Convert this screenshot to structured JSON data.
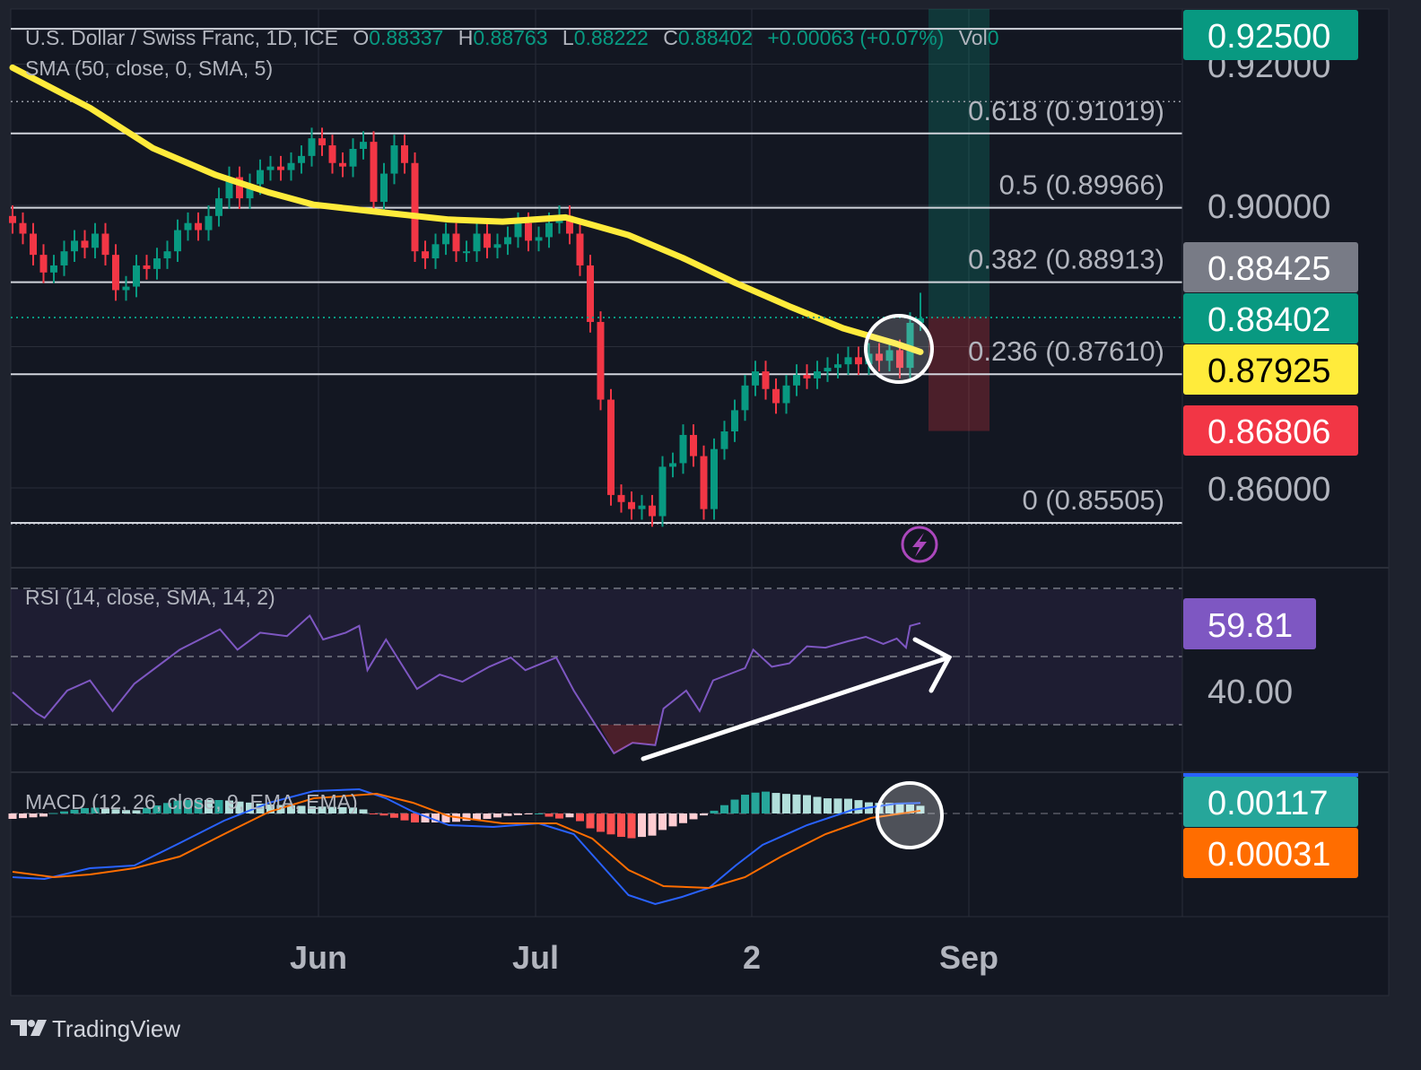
{
  "header": {
    "symbol": "U.S. Dollar / Swiss Franc, 1D, ICE",
    "o_label": "O",
    "o": "0.88337",
    "h_label": "H",
    "h": "0.88763",
    "l_label": "L",
    "l": "0.88222",
    "c_label": "C",
    "c": "0.88402",
    "change": "+0.00063 (+0.07%)",
    "vol_label": "Vol",
    "vol": "0",
    "sma_legend": "SMA (50, close, 0, SMA, 5)"
  },
  "colors": {
    "up": "#089981",
    "down": "#f23645",
    "sma": "#ffeb3b",
    "rsi": "#7e57c2",
    "macd": "#2962ff",
    "signal": "#ff6d00",
    "background": "#131722"
  },
  "fib_levels": [
    {
      "label": "0.618 (0.91019)",
      "price": 0.91019
    },
    {
      "label": "0.5 (0.89966)",
      "price": 0.89966
    },
    {
      "label": "0.382 (0.88913)",
      "price": 0.88913
    },
    {
      "label": "0.236 (0.87610)",
      "price": 0.8761
    },
    {
      "label": "0 (0.85505)",
      "price": 0.85505
    }
  ],
  "price_axis": {
    "ticks": [
      "0.92000",
      "0.90000",
      "0.86000"
    ],
    "tick_values": [
      0.92,
      0.9,
      0.86
    ],
    "badges": [
      {
        "label": "0.92500",
        "color": "#089981",
        "text_color": "#ffffff",
        "meaning": "target"
      },
      {
        "label": "0.88425",
        "color": "#787b86",
        "text_color": "#ffffff",
        "meaning": "entry"
      },
      {
        "label": "0.88402",
        "color": "#089981",
        "text_color": "#ffffff",
        "meaning": "last price"
      },
      {
        "label": "0.87925",
        "color": "#ffeb3b",
        "text_color": "#000000",
        "meaning": "SMA"
      },
      {
        "label": "0.86806",
        "color": "#f23645",
        "text_color": "#ffffff",
        "meaning": "stop"
      }
    ]
  },
  "time_axis": {
    "labels": [
      "Jun",
      "Jul",
      "2",
      "Sep"
    ]
  },
  "rsi": {
    "legend": "RSI (14, close, SMA, 14, 2)",
    "value_badge": "59.81",
    "axis_tick": "40.00",
    "bands": [
      30,
      50,
      70
    ]
  },
  "macd": {
    "legend": "MACD (12, 26, close, 9, EMA, EMA)",
    "macd_badge": "0.00117",
    "signal_badge": "0.00031"
  },
  "branding": {
    "name": "TradingView"
  },
  "chart_data": {
    "type": "candlestick",
    "closes": [
      0.8975,
      0.896,
      0.893,
      0.8905,
      0.8915,
      0.8935,
      0.895,
      0.894,
      0.896,
      0.893,
      0.888,
      0.8885,
      0.8915,
      0.891,
      0.8925,
      0.8935,
      0.8965,
      0.8975,
      0.8965,
      0.8985,
      0.901,
      0.904,
      0.901,
      0.903,
      0.905,
      0.9055,
      0.905,
      0.906,
      0.907,
      0.9095,
      0.9085,
      0.906,
      0.9055,
      0.908,
      0.909,
      0.9005,
      0.9045,
      0.9085,
      0.906,
      0.8935,
      0.8925,
      0.8945,
      0.896,
      0.8935,
      0.8935,
      0.896,
      0.894,
      0.8945,
      0.8955,
      0.8975,
      0.895,
      0.8955,
      0.8975,
      0.8985,
      0.896,
      0.8915,
      0.8835,
      0.8725,
      0.859,
      0.858,
      0.857,
      0.8575,
      0.856,
      0.863,
      0.8635,
      0.8675,
      0.8645,
      0.857,
      0.8655,
      0.868,
      0.871,
      0.8745,
      0.8765,
      0.874,
      0.872,
      0.8745,
      0.876,
      0.8755,
      0.8765,
      0.877,
      0.8775,
      0.8785,
      0.8775,
      0.879,
      0.878,
      0.8795,
      0.877,
      0.88337
    ],
    "last_candle": {
      "open": 0.88337,
      "high": 0.88763,
      "low": 0.88222,
      "close": 0.88402
    },
    "period_high": 0.9147,
    "sma50": [
      [
        0,
        0.9195
      ],
      [
        7.5,
        0.9138
      ],
      [
        13.6,
        0.9081
      ],
      [
        19.7,
        0.9043
      ],
      [
        24.9,
        0.9018
      ],
      [
        29.2,
        0.9001
      ],
      [
        35.3,
        0.8991
      ],
      [
        42.3,
        0.898
      ],
      [
        47.5,
        0.8977
      ],
      [
        53.6,
        0.8983
      ],
      [
        59.7,
        0.8958
      ],
      [
        64.9,
        0.8926
      ],
      [
        70.1,
        0.889
      ],
      [
        75.3,
        0.8857
      ],
      [
        80.5,
        0.8826
      ],
      [
        85.7,
        0.8804
      ],
      [
        88,
        0.87925
      ]
    ],
    "position": {
      "target": 0.925,
      "entry": 0.88425,
      "stop": 0.86806
    },
    "rsi_series": [
      [
        0,
        39.5
      ],
      [
        2.3,
        33.4
      ],
      [
        3.1,
        32
      ],
      [
        5.3,
        40
      ],
      [
        7.5,
        43
      ],
      [
        9.7,
        34
      ],
      [
        11.8,
        42
      ],
      [
        16.2,
        52
      ],
      [
        20.1,
        58
      ],
      [
        21.8,
        52
      ],
      [
        24,
        57
      ],
      [
        26.6,
        56
      ],
      [
        28.8,
        62
      ],
      [
        30.1,
        55
      ],
      [
        32.3,
        57
      ],
      [
        33.6,
        59
      ],
      [
        34.4,
        46
      ],
      [
        36.2,
        55
      ],
      [
        39.2,
        40.5
      ],
      [
        41.4,
        44.7
      ],
      [
        43.6,
        42.6
      ],
      [
        46.2,
        47
      ],
      [
        48.3,
        49.7
      ],
      [
        49.7,
        46
      ],
      [
        52.7,
        49.7
      ],
      [
        54.4,
        40
      ],
      [
        56.6,
        29.5
      ],
      [
        58.3,
        21.6
      ],
      [
        60.1,
        24.7
      ],
      [
        62.3,
        24
      ],
      [
        63.1,
        34.7
      ],
      [
        65.3,
        40
      ],
      [
        66.6,
        34
      ],
      [
        67.9,
        43
      ],
      [
        71,
        46.6
      ],
      [
        71.8,
        52
      ],
      [
        73.6,
        47
      ],
      [
        75.3,
        48
      ],
      [
        77,
        53
      ],
      [
        78.8,
        52.6
      ],
      [
        81,
        54.5
      ],
      [
        82.7,
        55.8
      ],
      [
        84.4,
        53.7
      ],
      [
        85.7,
        55.3
      ],
      [
        86.6,
        52.6
      ],
      [
        87,
        59
      ],
      [
        88,
        59.81
      ]
    ],
    "macd_series": [
      [
        0,
        -0.0071
      ],
      [
        3.1,
        -0.0073
      ],
      [
        7.5,
        -0.0061
      ],
      [
        11.8,
        -0.0058
      ],
      [
        16.2,
        -0.0033
      ],
      [
        20.5,
        -0.0008
      ],
      [
        24.9,
        0.0012
      ],
      [
        29.2,
        0.0025
      ],
      [
        33.6,
        0.0027
      ],
      [
        36.2,
        0.0017
      ],
      [
        38.8,
        0.0002
      ],
      [
        42.3,
        -0.0013
      ],
      [
        46.6,
        -0.0015
      ],
      [
        51,
        -0.0011
      ],
      [
        54.4,
        -0.0023
      ],
      [
        57.9,
        -0.0068
      ],
      [
        59.7,
        -0.0091
      ],
      [
        62.3,
        -0.0101
      ],
      [
        64.9,
        -0.0093
      ],
      [
        67.5,
        -0.0083
      ],
      [
        70.1,
        -0.0058
      ],
      [
        72.7,
        -0.0035
      ],
      [
        77,
        -0.0013
      ],
      [
        81.4,
        0.0004
      ],
      [
        85.7,
        0.0011
      ],
      [
        88,
        0.00117
      ]
    ],
    "signal_series": [
      [
        0,
        -0.0065
      ],
      [
        4,
        -0.0071
      ],
      [
        7.5,
        -0.0068
      ],
      [
        11.8,
        -0.0061
      ],
      [
        16.2,
        -0.0048
      ],
      [
        20.5,
        -0.0023
      ],
      [
        24.9,
        0.0002
      ],
      [
        29.2,
        0.0017
      ],
      [
        35.3,
        0.0022
      ],
      [
        38.8,
        0.0012
      ],
      [
        42.3,
        -0.0003
      ],
      [
        47.5,
        -0.0011
      ],
      [
        52.7,
        -0.0011
      ],
      [
        56.2,
        -0.0028
      ],
      [
        59.7,
        -0.0063
      ],
      [
        63.1,
        -0.0081
      ],
      [
        67.5,
        -0.0083
      ],
      [
        71,
        -0.0071
      ],
      [
        74.5,
        -0.0048
      ],
      [
        78.8,
        -0.0023
      ],
      [
        83.2,
        -0.0005
      ],
      [
        88,
        0.00031
      ]
    ]
  }
}
